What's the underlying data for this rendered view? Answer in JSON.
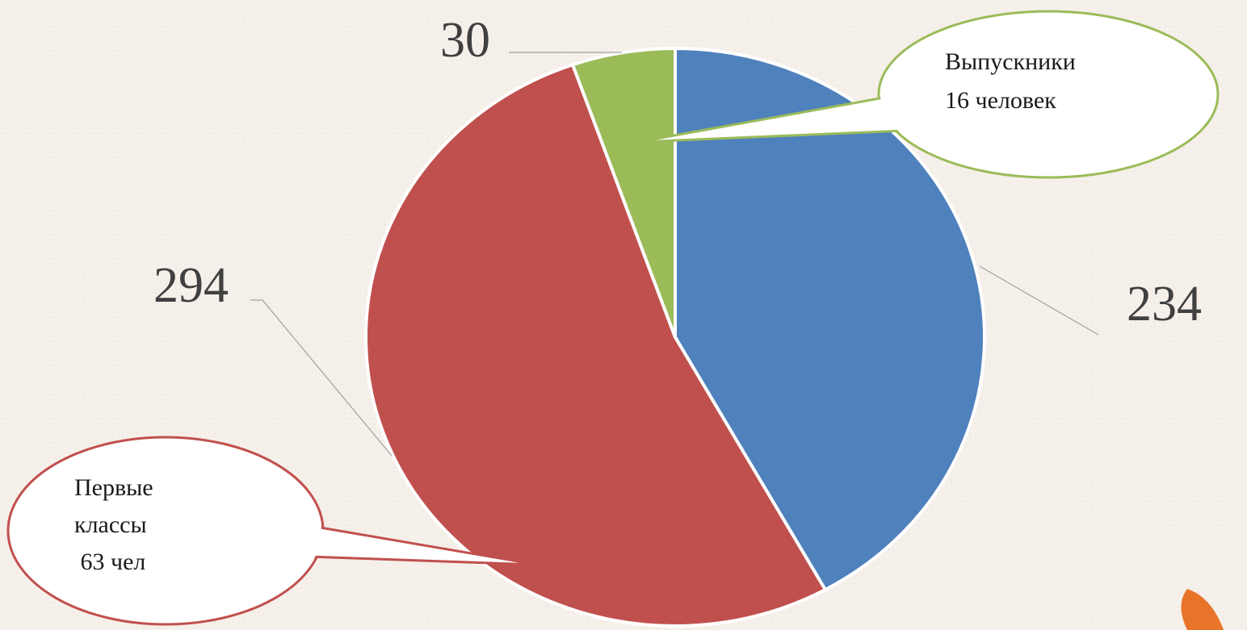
{
  "chart_data": {
    "type": "pie",
    "values": [
      234,
      294,
      30
    ],
    "colors": [
      "#4f81bd",
      "#c0504d",
      "#9bbb59"
    ],
    "annotations": [
      {
        "lines": [
          "Выпускники",
          "16 человек"
        ]
      },
      {
        "lines": [
          "Первые",
          "классы",
          " 63 чел"
        ]
      }
    ]
  }
}
